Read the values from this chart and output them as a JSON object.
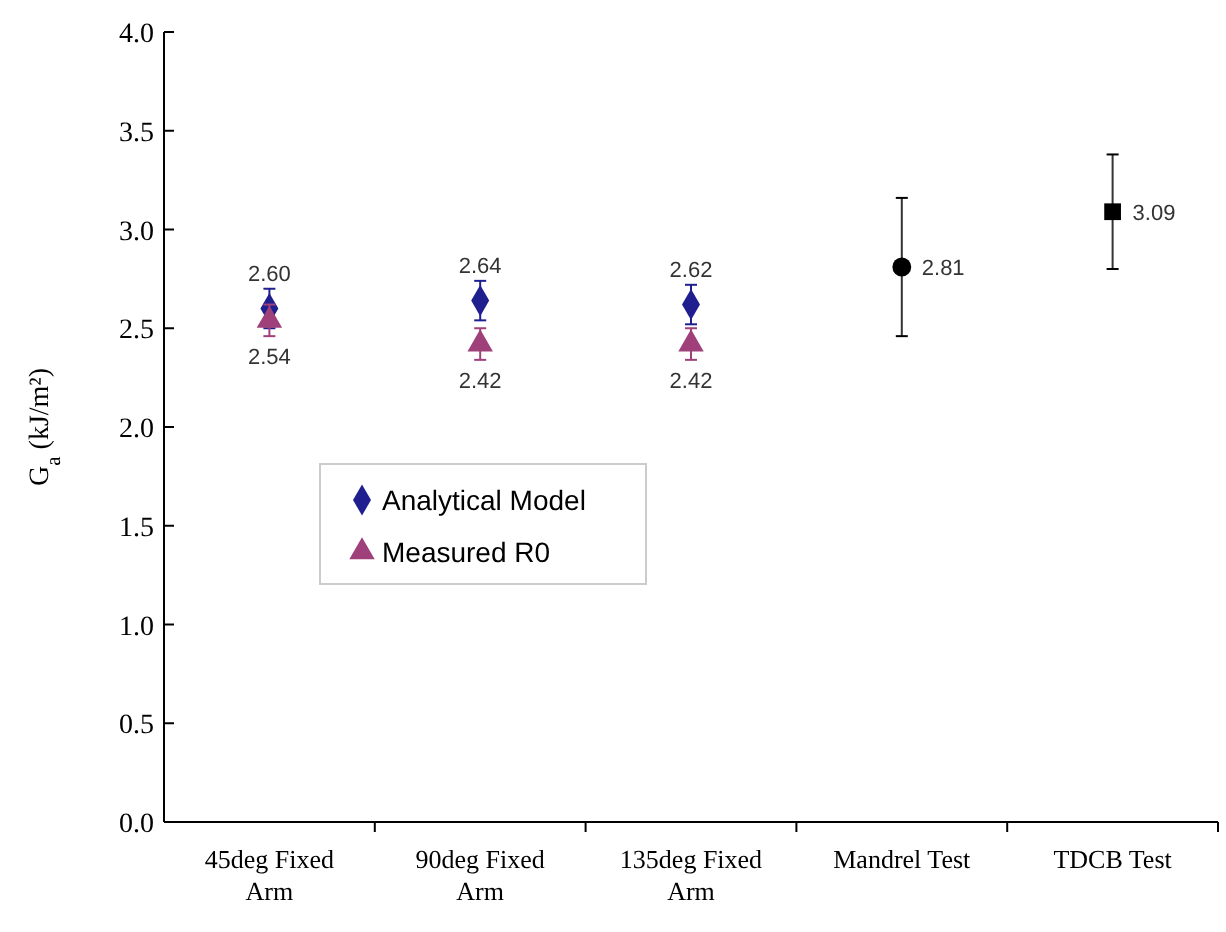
{
  "chart_data": {
    "type": "scatter",
    "ylabel": "G$_{a}$ (kJ/m²)",
    "categories": [
      "45deg Fixed Arm",
      "90deg Fixed Arm",
      "135deg Fixed Arm",
      "Mandrel Test",
      "TDCB Test"
    ],
    "series": [
      {
        "name": "Analytical Model",
        "color": "#1f1f8f",
        "marker": "diamond",
        "values": [
          2.6,
          2.64,
          2.62,
          null,
          null
        ],
        "errors": [
          0.1,
          0.1,
          0.1,
          null,
          null
        ],
        "value_labels": [
          "2.60",
          "2.64",
          "2.62",
          null,
          null
        ]
      },
      {
        "name": "Measured R0",
        "color": "#a0407a",
        "marker": "triangle",
        "values": [
          2.54,
          2.42,
          2.42,
          null,
          null
        ],
        "errors": [
          0.08,
          0.08,
          0.08,
          null,
          null
        ],
        "value_labels": [
          "2.54",
          "2.42",
          "2.42",
          null,
          null
        ]
      },
      {
        "color": "#000000",
        "marker": "circle",
        "values": [
          null,
          null,
          null,
          2.81,
          null
        ],
        "errors": [
          null,
          null,
          null,
          0.35,
          null
        ],
        "value_labels": [
          null,
          null,
          null,
          "2.81",
          null
        ]
      },
      {
        "color": "#000000",
        "marker": "square",
        "values": [
          null,
          null,
          null,
          null,
          3.09
        ],
        "errors": [
          null,
          null,
          null,
          null,
          0.29
        ],
        "value_labels": [
          null,
          null,
          null,
          null,
          "3.09"
        ]
      }
    ],
    "ylim": [
      0,
      4
    ],
    "yticks": [
      {
        "value": 0,
        "label": "0.0"
      },
      {
        "value": 0.5,
        "label": "0.5"
      },
      {
        "value": 1,
        "label": "1.0"
      },
      {
        "value": 1.5,
        "label": "1.5"
      },
      {
        "value": 2,
        "label": "2.0"
      },
      {
        "value": 2.5,
        "label": "2.5"
      },
      {
        "value": 3,
        "label": "3.0"
      },
      {
        "value": 3.5,
        "label": "3.5"
      },
      {
        "value": 4,
        "label": "4.0"
      }
    ],
    "legend": "left",
    "grid": false
  }
}
